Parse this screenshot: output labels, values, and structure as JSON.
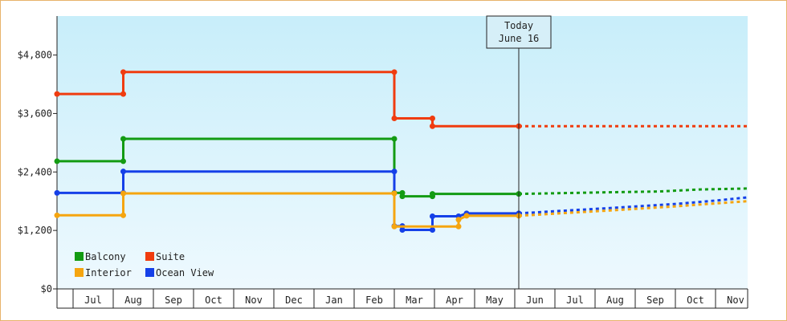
{
  "chart_data": {
    "type": "line",
    "title": "",
    "xlabel": "",
    "ylabel": "",
    "x_ticks": [
      "Jul",
      "Aug",
      "Sep",
      "Oct",
      "Nov",
      "Dec",
      "Jan",
      "Feb",
      "Mar",
      "Apr",
      "May",
      "Jun",
      "Jul",
      "Aug",
      "Sep",
      "Oct",
      "Nov"
    ],
    "y_ticks": [
      "$0",
      "$1,200",
      "$2,400",
      "$3,600",
      "$4,800"
    ],
    "y_tick_values": [
      0,
      1200,
      2400,
      3600,
      4800
    ],
    "ylim": [
      0,
      5600
    ],
    "x_range_months": [
      0,
      17.2
    ],
    "legend": "bottom-left",
    "annotation": {
      "lines": [
        "Today",
        "June 16"
      ],
      "x_month": 11.5
    },
    "series": [
      {
        "name": "Suite",
        "color": "#f03c0f",
        "points": [
          [
            0,
            4000
          ],
          [
            1.65,
            4000
          ],
          [
            1.65,
            4450
          ],
          [
            8.4,
            4450
          ],
          [
            8.4,
            3500
          ],
          [
            9.35,
            3500
          ],
          [
            9.35,
            3340
          ],
          [
            11.5,
            3340
          ]
        ],
        "forecast": [
          [
            11.5,
            3340
          ],
          [
            17.2,
            3340
          ]
        ]
      },
      {
        "name": "Balcony",
        "color": "#139b13",
        "points": [
          [
            0,
            2620
          ],
          [
            1.65,
            2620
          ],
          [
            1.65,
            3080
          ],
          [
            8.4,
            3080
          ],
          [
            8.4,
            1970
          ],
          [
            8.6,
            1970
          ],
          [
            8.6,
            1900
          ],
          [
            9.35,
            1900
          ],
          [
            9.35,
            1950
          ],
          [
            11.5,
            1950
          ]
        ],
        "forecast": [
          [
            11.5,
            1950
          ],
          [
            12.2,
            1960
          ],
          [
            13.5,
            1980
          ],
          [
            15.0,
            2000
          ],
          [
            16.0,
            2040
          ],
          [
            17.2,
            2060
          ]
        ]
      },
      {
        "name": "Ocean View",
        "color": "#1540e8",
        "points": [
          [
            0,
            1970
          ],
          [
            1.65,
            1970
          ],
          [
            1.65,
            2410
          ],
          [
            8.4,
            2410
          ],
          [
            8.4,
            1290
          ],
          [
            8.6,
            1290
          ],
          [
            8.6,
            1210
          ],
          [
            9.35,
            1210
          ],
          [
            9.35,
            1490
          ],
          [
            10.0,
            1490
          ],
          [
            10.2,
            1550
          ],
          [
            11.5,
            1550
          ]
        ],
        "forecast": [
          [
            11.5,
            1550
          ],
          [
            12.5,
            1600
          ],
          [
            14.0,
            1670
          ],
          [
            15.5,
            1750
          ],
          [
            16.5,
            1820
          ],
          [
            17.2,
            1880
          ]
        ]
      },
      {
        "name": "Interior",
        "color": "#f5a510",
        "points": [
          [
            0,
            1510
          ],
          [
            1.65,
            1510
          ],
          [
            1.65,
            1960
          ],
          [
            8.4,
            1960
          ],
          [
            8.4,
            1280
          ],
          [
            10.0,
            1280
          ],
          [
            10.0,
            1420
          ],
          [
            10.2,
            1500
          ],
          [
            11.5,
            1500
          ]
        ],
        "forecast": [
          [
            11.5,
            1500
          ],
          [
            12.5,
            1550
          ],
          [
            14.0,
            1620
          ],
          [
            15.5,
            1700
          ],
          [
            16.5,
            1760
          ],
          [
            17.2,
            1800
          ]
        ]
      }
    ],
    "legend_order": [
      "Balcony",
      "Suite",
      "Interior",
      "Ocean View"
    ]
  }
}
